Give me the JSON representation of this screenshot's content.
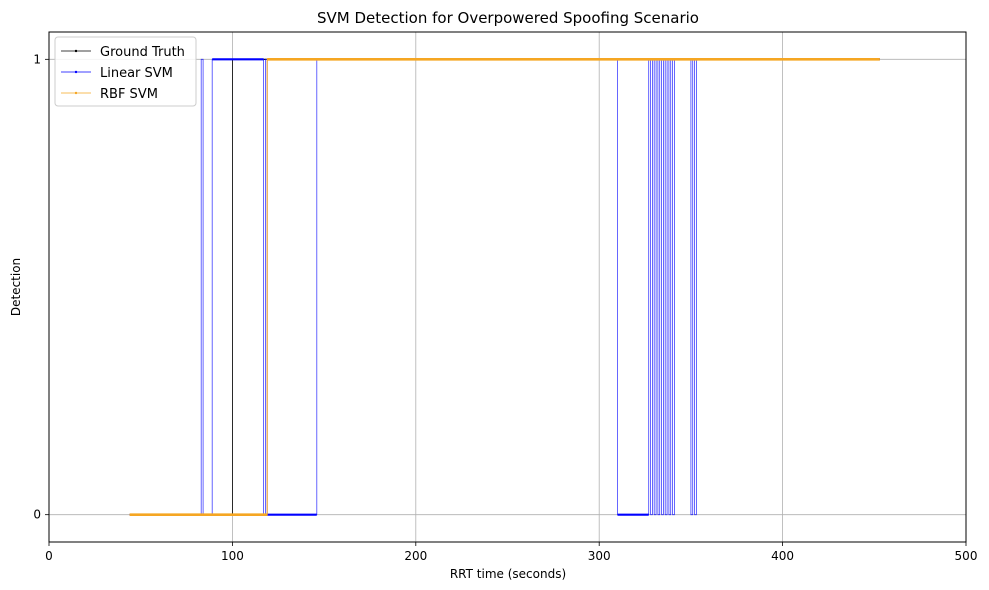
{
  "chart_data": {
    "type": "line",
    "title": "SVM Detection for Overpowered Spoofing Scenario",
    "xlabel": "RRT time (seconds)",
    "ylabel": "Detection",
    "xlim": [
      0,
      500
    ],
    "ylim": [
      -0.06,
      1.06
    ],
    "xticks": [
      0,
      100,
      200,
      300,
      400,
      500
    ],
    "yticks": [
      0,
      1
    ],
    "xtick_labels": [
      "0",
      "100",
      "200",
      "300",
      "400",
      "500"
    ],
    "ytick_labels": [
      "0",
      "1"
    ],
    "grid": true,
    "legend_position": "upper-left",
    "series": [
      {
        "name": "Ground Truth",
        "color": "#000000",
        "step_points": [
          [
            44,
            0
          ],
          [
            100,
            0
          ],
          [
            100,
            1
          ],
          [
            453,
            1
          ]
        ]
      },
      {
        "name": "Linear SVM",
        "color": "#0000ff",
        "step_points": [
          [
            44,
            0
          ],
          [
            83,
            0
          ],
          [
            83,
            1
          ],
          [
            84,
            1
          ],
          [
            84,
            0
          ],
          [
            89,
            0
          ],
          [
            89,
            1
          ],
          [
            117,
            1
          ],
          [
            117,
            0
          ],
          [
            118,
            0
          ],
          [
            118,
            1
          ],
          [
            119,
            1
          ],
          [
            119,
            0
          ],
          [
            146,
            0
          ],
          [
            146,
            1
          ],
          [
            310,
            1
          ],
          [
            310,
            0
          ],
          [
            327,
            0
          ],
          [
            327,
            1
          ],
          [
            328,
            1
          ],
          [
            328,
            0
          ],
          [
            329,
            0
          ],
          [
            329,
            1
          ],
          [
            330,
            1
          ],
          [
            330,
            0
          ],
          [
            331,
            0
          ],
          [
            331,
            1
          ],
          [
            332,
            1
          ],
          [
            332,
            0
          ],
          [
            333,
            0
          ],
          [
            333,
            1
          ],
          [
            334,
            1
          ],
          [
            334,
            0
          ],
          [
            335,
            0
          ],
          [
            335,
            1
          ],
          [
            336,
            1
          ],
          [
            336,
            0
          ],
          [
            337,
            0
          ],
          [
            337,
            1
          ],
          [
            338,
            1
          ],
          [
            338,
            0
          ],
          [
            339,
            0
          ],
          [
            339,
            1
          ],
          [
            340,
            1
          ],
          [
            340,
            0
          ],
          [
            341,
            0
          ],
          [
            341,
            1
          ],
          [
            350,
            1
          ],
          [
            350,
            0
          ],
          [
            351,
            0
          ],
          [
            351,
            1
          ],
          [
            352,
            1
          ],
          [
            352,
            0
          ],
          [
            353,
            0
          ],
          [
            353,
            1
          ],
          [
            453,
            1
          ]
        ]
      },
      {
        "name": "RBF SVM",
        "color": "#f5a623",
        "step_points": [
          [
            44,
            0
          ],
          [
            119,
            0
          ],
          [
            119,
            1
          ],
          [
            453,
            1
          ]
        ]
      }
    ]
  }
}
